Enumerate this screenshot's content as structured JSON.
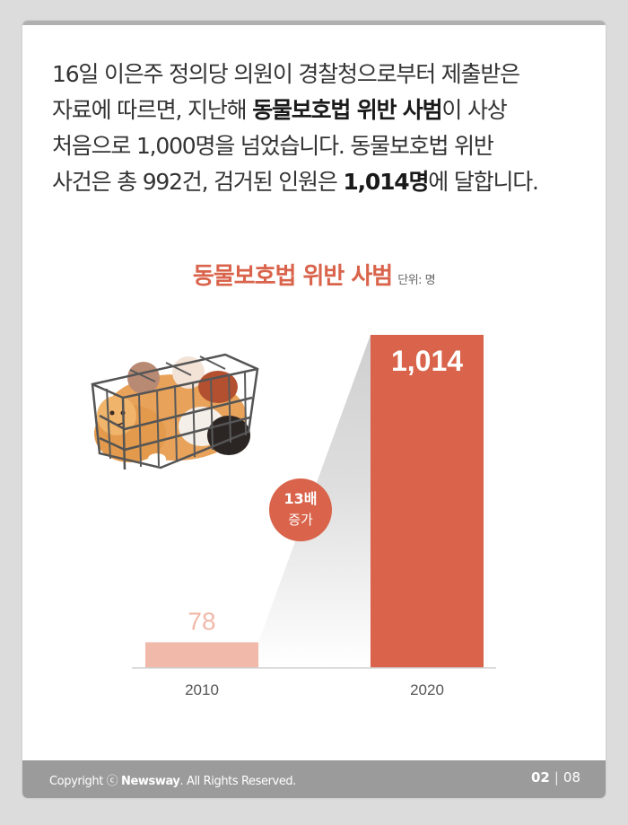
{
  "intro": {
    "line1": "16일 이은주 정의당 의원이 경찰청으로부터 제출받은",
    "line2_a": "자료에 따르면, 지난해 ",
    "line2_b": "동물보호법 위반 사범",
    "line2_c": "이 사상",
    "line3": "처음으로 1,000명을 넘었습니다. 동물보호법 위반",
    "line4_a": "사건은 총 992건, 검거된 인원은 ",
    "line4_b": "1,014명",
    "line4_c": "에 달합니다."
  },
  "colors": {
    "accent": "#d9634b",
    "bar_2010": "#f0b9aa",
    "bar_2020": "#d9634b",
    "badge": "#d9634b",
    "footer": "#9b9b9b"
  },
  "chart_data": {
    "type": "bar",
    "title": "동물보호법 위반 사범",
    "unit": "단위: 명",
    "categories": [
      "2010",
      "2020"
    ],
    "values": [
      78,
      1014
    ],
    "value_labels": [
      "78",
      "1,014"
    ],
    "ylim": [
      0,
      1014
    ],
    "annotation": {
      "line1": "13배",
      "line2": "증가"
    },
    "grid": false
  },
  "footer": {
    "copyright_prefix": "Copyright ⓒ ",
    "brand": "Newsway",
    "copyright_suffix": ". All Rights Reserved.",
    "page_current": "02",
    "page_sep": "|",
    "page_total": "08"
  },
  "icons": [
    "cat-cage-illustration"
  ]
}
